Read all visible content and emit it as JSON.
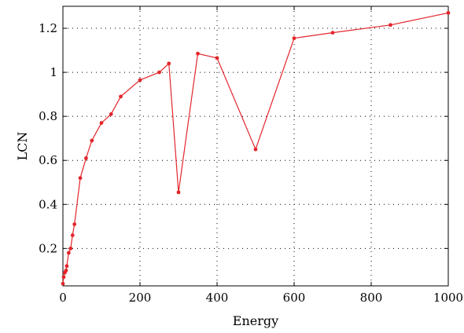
{
  "chart_data": {
    "type": "line",
    "xlabel": "Energy",
    "ylabel": "LCN",
    "xlim": [
      0,
      1000
    ],
    "ylim": [
      0.03,
      1.3
    ],
    "xticks": [
      0,
      200,
      400,
      600,
      800,
      1000
    ],
    "yticks": [
      0.2,
      0.4,
      0.6,
      0.8,
      1,
      1.2
    ],
    "xtick_labels": [
      "0",
      "200",
      "400",
      "600",
      "800",
      "1000"
    ],
    "ytick_labels": [
      "0.2",
      "0.4",
      "0.6",
      "0.8",
      "1",
      "1.2"
    ],
    "grid": true,
    "color": "#e3262b",
    "series": [
      {
        "x": [
          0,
          2,
          5,
          8,
          10,
          15,
          20,
          25,
          30,
          45,
          60,
          75,
          100,
          125,
          150,
          200,
          250,
          275,
          300,
          350,
          400,
          500,
          600,
          700,
          850,
          1000
        ],
        "y": [
          0.04,
          0.07,
          0.09,
          0.1,
          0.12,
          0.18,
          0.2,
          0.26,
          0.31,
          0.52,
          0.61,
          0.69,
          0.77,
          0.81,
          0.89,
          0.965,
          1.0,
          1.04,
          0.455,
          1.085,
          1.065,
          0.65,
          1.155,
          1.18,
          1.215,
          1.27
        ]
      }
    ]
  }
}
